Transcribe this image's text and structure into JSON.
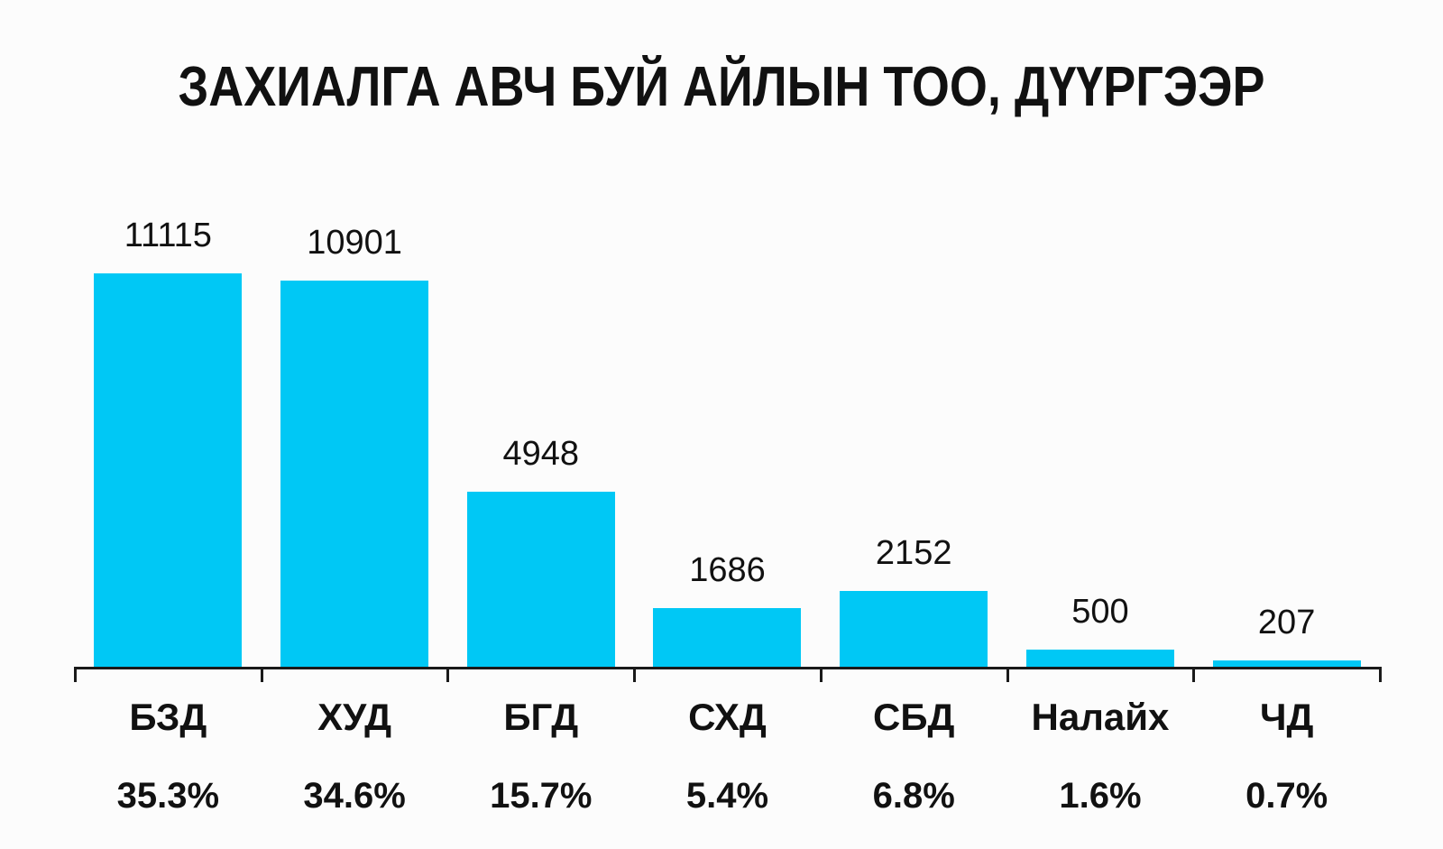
{
  "title": "ЗАХИАЛГА АВЧ БУЙ АЙЛЫН ТОО, ДҮҮРГЭЭР",
  "colors": {
    "bar": "#00C8F5",
    "axis": "#1A1A1A",
    "text": "#111111",
    "background": "#FCFCFC"
  },
  "chart_data": {
    "type": "bar",
    "title": "ЗАХИАЛГА АВЧ БУЙ АЙЛЫН ТОО, ДҮҮРГЭЭР",
    "categories": [
      "БЗД",
      "ХУД",
      "БГД",
      "СХД",
      "СБД",
      "Налайх",
      "ЧД"
    ],
    "values": [
      11115,
      10901,
      4948,
      1686,
      2152,
      500,
      207
    ],
    "percent_labels": [
      "35.3%",
      "34.6%",
      "15.7%",
      "5.4%",
      "6.8%",
      "1.6%",
      "0.7%"
    ],
    "xlabel": "",
    "ylabel": "",
    "ylim": [
      0,
      11115
    ],
    "grid": false,
    "legend": "none",
    "value_label_position": "above-bars",
    "bar_color": "#00C8F5"
  }
}
